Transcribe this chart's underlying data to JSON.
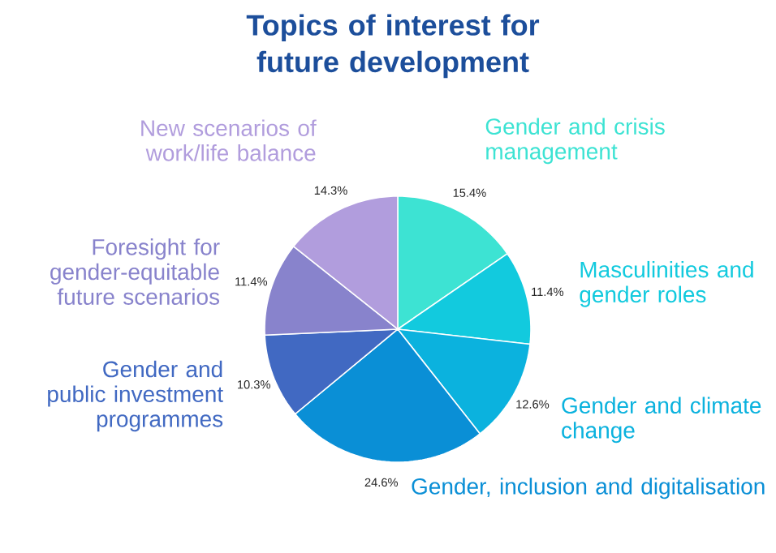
{
  "chart_data": {
    "type": "pie",
    "title": "Topics of interest for future development",
    "categories": [
      "Gender and crisis management",
      "Masculinities and gender roles",
      "Gender and climate change",
      "Gender, inclusion and digitalisation",
      "Gender and public investment programmes",
      "Foresight for gender-equitable future scenarios",
      "New scenarios of work/life balance"
    ],
    "values": [
      15.4,
      11.4,
      12.6,
      24.6,
      10.3,
      11.4,
      14.3
    ],
    "value_labels": [
      "15.4%",
      "11.4%",
      "12.6%",
      "24.6%",
      "10.3%",
      "11.4%",
      "14.3%"
    ],
    "colors": [
      "#3de3d3",
      "#12cade",
      "#0bb2de",
      "#0a8fd6",
      "#4169c2",
      "#8883cc",
      "#b19ddd"
    ]
  }
}
